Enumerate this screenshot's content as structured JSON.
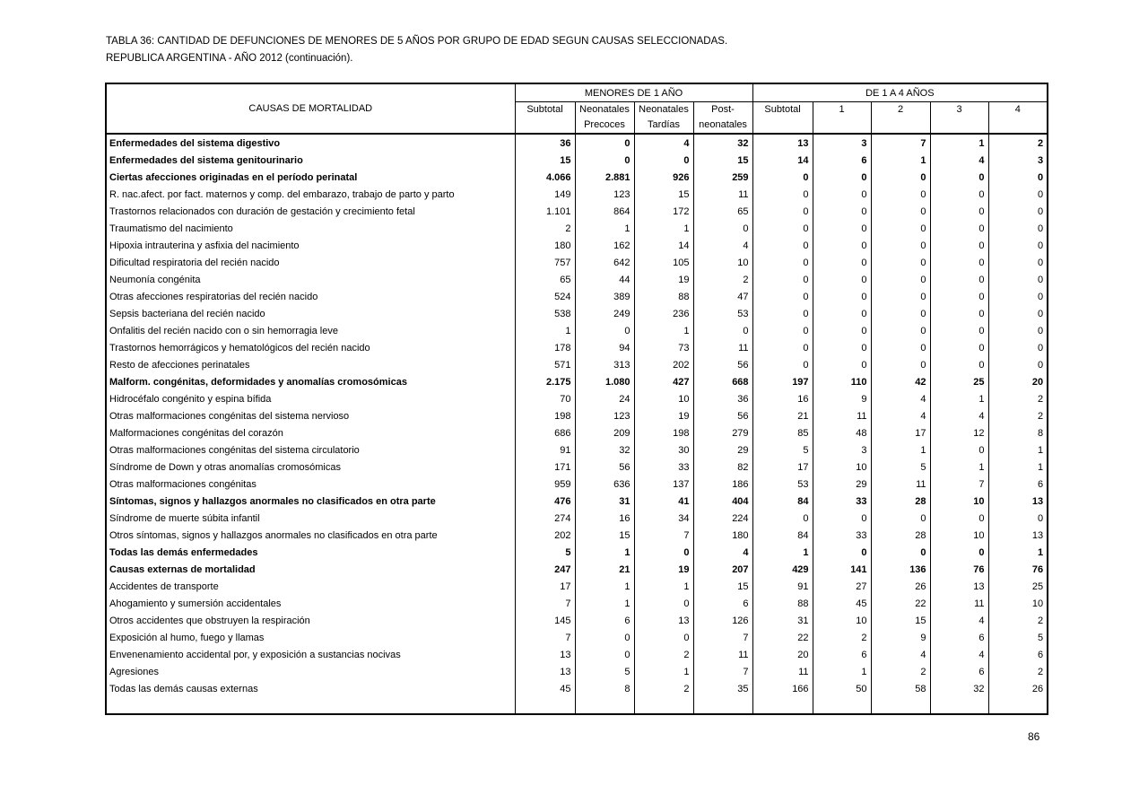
{
  "page": {
    "title_line1": "TABLA 36: CANTIDAD DE DEFUNCIONES DE MENORES DE 5 AÑOS POR GRUPO DE EDAD SEGUN CAUSAS SELECCIONADAS.",
    "title_line2": "REPUBLICA ARGENTINA - AÑO 2012 (continuación).",
    "page_number": "86"
  },
  "table": {
    "col_header_label": "CAUSAS DE MORTALIDAD",
    "groups": [
      {
        "label": "MENORES DE 1 AÑO"
      },
      {
        "label": "DE  1 A 4 AÑOS"
      }
    ],
    "sub_headers": [
      {
        "line1": "Subtotal",
        "line2": ""
      },
      {
        "line1": "Neonatales",
        "line2": "Precoces"
      },
      {
        "line1": "Neonatales",
        "line2": "Tardías"
      },
      {
        "line1": "Post-",
        "line2": "neonatales"
      },
      {
        "line1": "Subtotal",
        "line2": ""
      },
      {
        "line1": "1",
        "line2": ""
      },
      {
        "line1": "2",
        "line2": ""
      },
      {
        "line1": "3",
        "line2": ""
      },
      {
        "line1": "4",
        "line2": ""
      }
    ],
    "rows": [
      {
        "label": "Enfermedades del sistema digestivo",
        "bold": true,
        "values": [
          "36",
          "0",
          "4",
          "32",
          "13",
          "3",
          "7",
          "1",
          "2"
        ]
      },
      {
        "label": "Enfermedades del sistema genitourinario",
        "bold": true,
        "values": [
          "15",
          "0",
          "0",
          "15",
          "14",
          "6",
          "1",
          "4",
          "3"
        ]
      },
      {
        "label": "Ciertas afecciones originadas en el período perinatal",
        "bold": true,
        "values": [
          "4.066",
          "2.881",
          "926",
          "259",
          "0",
          "0",
          "0",
          "0",
          "0"
        ]
      },
      {
        "label": "R. nac.afect. por fact. maternos y comp. del embarazo, trabajo de parto y  parto",
        "bold": false,
        "values": [
          "149",
          "123",
          "15",
          "11",
          "0",
          "0",
          "0",
          "0",
          "0"
        ]
      },
      {
        "label": "Trastornos relacionados con duración de  gestación y crecimiento fetal",
        "bold": false,
        "values": [
          "1.101",
          "864",
          "172",
          "65",
          "0",
          "0",
          "0",
          "0",
          "0"
        ]
      },
      {
        "label": "Traumatismo del nacimiento",
        "bold": false,
        "values": [
          "2",
          "1",
          "1",
          "0",
          "0",
          "0",
          "0",
          "0",
          "0"
        ]
      },
      {
        "label": "Hipoxia intrauterina y asfixia del nacimiento",
        "bold": false,
        "values": [
          "180",
          "162",
          "14",
          "4",
          "0",
          "0",
          "0",
          "0",
          "0"
        ]
      },
      {
        "label": "Dificultad respiratoria del recién nacido",
        "bold": false,
        "values": [
          "757",
          "642",
          "105",
          "10",
          "0",
          "0",
          "0",
          "0",
          "0"
        ]
      },
      {
        "label": "Neumonía congénita",
        "bold": false,
        "values": [
          "65",
          "44",
          "19",
          "2",
          "0",
          "0",
          "0",
          "0",
          "0"
        ]
      },
      {
        "label": "Otras afecciones respiratorias del recién nacido",
        "bold": false,
        "values": [
          "524",
          "389",
          "88",
          "47",
          "0",
          "0",
          "0",
          "0",
          "0"
        ]
      },
      {
        "label": "Sepsis bacteriana del recién nacido",
        "bold": false,
        "values": [
          "538",
          "249",
          "236",
          "53",
          "0",
          "0",
          "0",
          "0",
          "0"
        ]
      },
      {
        "label": "Onfalitis del recién nacido con o sin hemorragia leve",
        "bold": false,
        "values": [
          "1",
          "0",
          "1",
          "0",
          "0",
          "0",
          "0",
          "0",
          "0"
        ]
      },
      {
        "label": "Trastornos hemorrágicos y hematológicos del recién nacido",
        "bold": false,
        "values": [
          "178",
          "94",
          "73",
          "11",
          "0",
          "0",
          "0",
          "0",
          "0"
        ]
      },
      {
        "label": "Resto de afecciones perinatales",
        "bold": false,
        "values": [
          "571",
          "313",
          "202",
          "56",
          "0",
          "0",
          "0",
          "0",
          "0"
        ]
      },
      {
        "label": "Malform. congénitas, deformidades y anomalías cromosómicas",
        "bold": true,
        "values": [
          "2.175",
          "1.080",
          "427",
          "668",
          "197",
          "110",
          "42",
          "25",
          "20"
        ]
      },
      {
        "label": "Hidrocéfalo congénito y espina bífida",
        "bold": false,
        "values": [
          "70",
          "24",
          "10",
          "36",
          "16",
          "9",
          "4",
          "1",
          "2"
        ]
      },
      {
        "label": "Otras malformaciones congénitas del sistema nervioso",
        "bold": false,
        "values": [
          "198",
          "123",
          "19",
          "56",
          "21",
          "11",
          "4",
          "4",
          "2"
        ]
      },
      {
        "label": "Malformaciones congénitas del corazón",
        "bold": false,
        "values": [
          "686",
          "209",
          "198",
          "279",
          "85",
          "48",
          "17",
          "12",
          "8"
        ]
      },
      {
        "label": "Otras malformaciones congénitas del sistema circulatorio",
        "bold": false,
        "values": [
          "91",
          "32",
          "30",
          "29",
          "5",
          "3",
          "1",
          "0",
          "1"
        ]
      },
      {
        "label": "Síndrome de Down y otras anomalías cromosómicas",
        "bold": false,
        "values": [
          "171",
          "56",
          "33",
          "82",
          "17",
          "10",
          "5",
          "1",
          "1"
        ]
      },
      {
        "label": "Otras malformaciones congénitas",
        "bold": false,
        "values": [
          "959",
          "636",
          "137",
          "186",
          "53",
          "29",
          "11",
          "7",
          "6"
        ]
      },
      {
        "label": "Síntomas, signos y hallazgos anormales  no clasificados en otra parte",
        "bold": true,
        "values": [
          "476",
          "31",
          "41",
          "404",
          "84",
          "33",
          "28",
          "10",
          "13"
        ]
      },
      {
        "label": "Síndrome de muerte súbita infantil",
        "bold": false,
        "values": [
          "274",
          "16",
          "34",
          "224",
          "0",
          "0",
          "0",
          "0",
          "0"
        ]
      },
      {
        "label": "Otros síntomas, signos y hallazgos anormales no clasificados en otra parte",
        "bold": false,
        "values": [
          "202",
          "15",
          "7",
          "180",
          "84",
          "33",
          "28",
          "10",
          "13"
        ]
      },
      {
        "label": "Todas las demás enfermedades",
        "bold": true,
        "values": [
          "5",
          "1",
          "0",
          "4",
          "1",
          "0",
          "0",
          "0",
          "1"
        ]
      },
      {
        "label": "Causas externas de mortalidad",
        "bold": true,
        "values": [
          "247",
          "21",
          "19",
          "207",
          "429",
          "141",
          "136",
          "76",
          "76"
        ]
      },
      {
        "label": "Accidentes de transporte",
        "bold": false,
        "values": [
          "17",
          "1",
          "1",
          "15",
          "91",
          "27",
          "26",
          "13",
          "25"
        ]
      },
      {
        "label": "Ahogamiento y sumersión accidentales",
        "bold": false,
        "values": [
          "7",
          "1",
          "0",
          "6",
          "88",
          "45",
          "22",
          "11",
          "10"
        ]
      },
      {
        "label": "Otros accidentes que obstruyen la respiración",
        "bold": false,
        "values": [
          "145",
          "6",
          "13",
          "126",
          "31",
          "10",
          "15",
          "4",
          "2"
        ]
      },
      {
        "label": "Exposición al humo, fuego y llamas",
        "bold": false,
        "values": [
          "7",
          "0",
          "0",
          "7",
          "22",
          "2",
          "9",
          "6",
          "5"
        ]
      },
      {
        "label": "Envenenamiento accidental por, y exposición a sustancias nocivas",
        "bold": false,
        "values": [
          "13",
          "0",
          "2",
          "11",
          "20",
          "6",
          "4",
          "4",
          "6"
        ]
      },
      {
        "label": "Agresiones",
        "bold": false,
        "values": [
          "13",
          "5",
          "1",
          "7",
          "11",
          "1",
          "2",
          "6",
          "2"
        ]
      },
      {
        "label": "Todas las demás causas externas",
        "bold": false,
        "values": [
          "45",
          "8",
          "2",
          "35",
          "166",
          "50",
          "58",
          "32",
          "26"
        ]
      }
    ]
  }
}
